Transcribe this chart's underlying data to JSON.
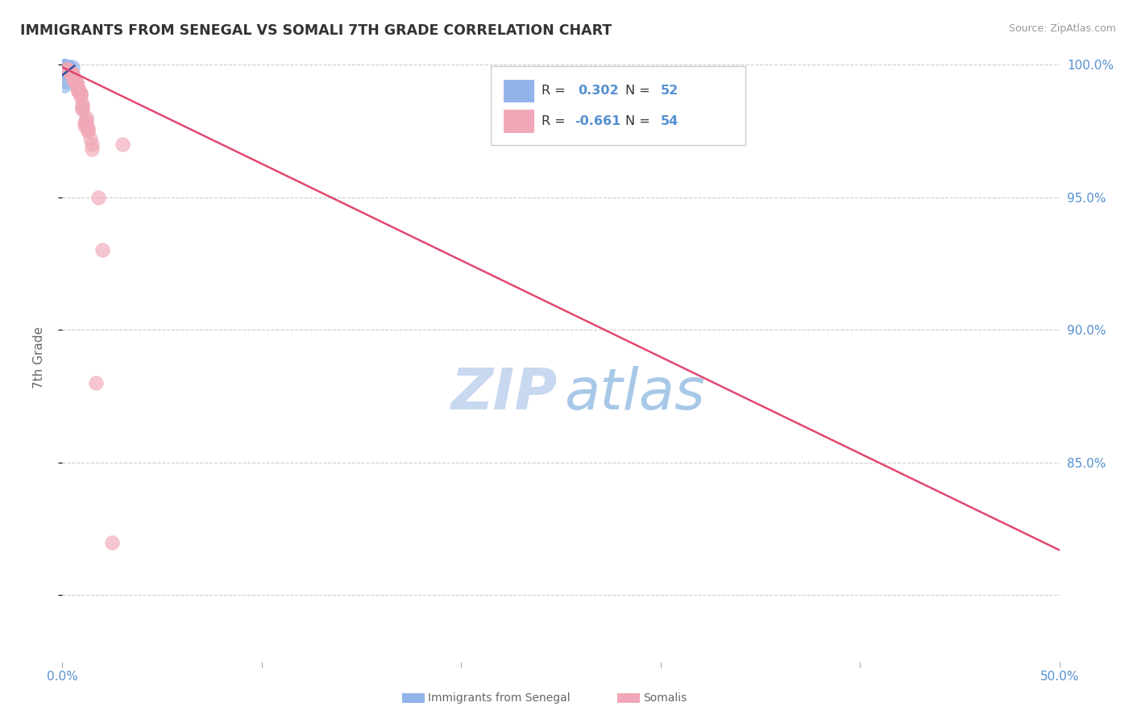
{
  "title": "IMMIGRANTS FROM SENEGAL VS SOMALI 7TH GRADE CORRELATION CHART",
  "source_text": "Source: ZipAtlas.com",
  "ylabel": "7th Grade",
  "blue_color": "#92b4e8",
  "pink_color": "#f0a8b8",
  "blue_line_color": "#2850a0",
  "pink_line_color": "#e04870",
  "watermark_zip_color": "#c8d8f0",
  "watermark_atlas_color": "#a8c8e8",
  "grid_color": "#cccccc",
  "axis_label_color": "#5590d0",
  "title_color": "#333333",
  "blue_scatter_x": [
    0.002,
    0.003,
    0.005,
    0.001,
    0.002,
    0.004,
    0.003,
    0.002,
    0.001,
    0.003,
    0.002,
    0.001,
    0.003,
    0.002,
    0.001,
    0.003,
    0.004,
    0.002,
    0.003,
    0.001,
    0.002,
    0.001,
    0.003,
    0.002,
    0.002,
    0.001,
    0.003,
    0.002,
    0.001,
    0.002,
    0.002,
    0.003,
    0.001,
    0.002,
    0.002,
    0.002,
    0.003,
    0.002,
    0.001,
    0.003,
    0.003,
    0.001,
    0.002,
    0.002,
    0.002,
    0.001,
    0.003,
    0.002,
    0.001,
    0.002,
    0.002,
    0.002
  ],
  "blue_scatter_y": [
    0.999,
    0.9985,
    0.9992,
    0.9995,
    0.9988,
    0.9972,
    0.999,
    0.9985,
    0.9992,
    0.9988,
    0.9985,
    0.9992,
    0.9978,
    0.999,
    0.9995,
    0.9982,
    0.9975,
    0.9988,
    0.998,
    0.999,
    0.9985,
    0.9993,
    0.998,
    0.9985,
    0.999,
    0.9988,
    0.9982,
    0.9985,
    0.9993,
    0.9988,
    0.999,
    0.9978,
    0.9993,
    0.999,
    0.999,
    0.9988,
    0.999,
    0.999,
    0.9993,
    0.9975,
    0.998,
    0.9922,
    0.9975,
    0.9972,
    0.998,
    0.9982,
    0.998,
    0.999,
    0.9982,
    0.9935,
    0.999,
    0.999
  ],
  "pink_scatter_x": [
    0.002,
    0.003,
    0.013,
    0.005,
    0.008,
    0.012,
    0.01,
    0.006,
    0.015,
    0.008,
    0.007,
    0.004,
    0.009,
    0.005,
    0.011,
    0.003,
    0.007,
    0.014,
    0.006,
    0.009,
    0.008,
    0.013,
    0.004,
    0.006,
    0.003,
    0.01,
    0.007,
    0.005,
    0.008,
    0.011,
    0.004,
    0.007,
    0.006,
    0.009,
    0.012,
    0.015,
    0.003,
    0.005,
    0.008,
    0.01,
    0.004,
    0.007,
    0.006,
    0.009,
    0.013,
    0.005,
    0.008,
    0.012,
    0.01,
    0.018,
    0.02,
    0.017,
    0.03,
    0.025
  ],
  "pink_scatter_y": [
    0.9985,
    0.9978,
    0.975,
    0.9968,
    0.99,
    0.98,
    0.983,
    0.994,
    0.97,
    0.991,
    0.993,
    0.997,
    0.988,
    0.996,
    0.977,
    0.998,
    0.993,
    0.972,
    0.994,
    0.989,
    0.99,
    0.976,
    0.997,
    0.994,
    0.998,
    0.984,
    0.993,
    0.996,
    0.991,
    0.978,
    0.997,
    0.993,
    0.994,
    0.989,
    0.978,
    0.968,
    0.998,
    0.996,
    0.991,
    0.985,
    0.997,
    0.993,
    0.994,
    0.989,
    0.975,
    0.996,
    0.991,
    0.979,
    0.984,
    0.95,
    0.93,
    0.88,
    0.97,
    0.82
  ],
  "xmin": 0.0,
  "xmax": 0.5,
  "ymin": 0.775,
  "ymax": 1.004,
  "blue_trendline_x": [
    0.0,
    0.006
  ],
  "blue_trendline_y": [
    0.996,
    0.9995
  ],
  "pink_trendline_x": [
    0.0,
    0.5
  ],
  "pink_trendline_y": [
    0.999,
    0.817
  ],
  "yticks": [
    0.8,
    0.85,
    0.9,
    0.95,
    1.0
  ],
  "xticks": [
    0.0,
    0.1,
    0.2,
    0.3,
    0.4,
    0.5
  ]
}
